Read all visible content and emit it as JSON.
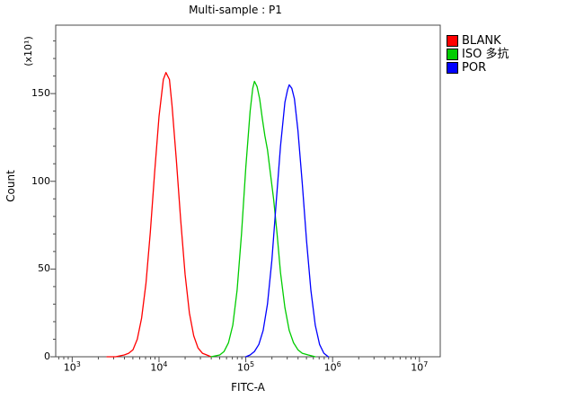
{
  "title": "Multi-sample : P1",
  "axes": {
    "x": {
      "label": "FITC-A",
      "scale": "log10",
      "tick_labels": [
        "10³",
        "10⁴",
        "10⁵",
        "10⁶",
        "10⁷"
      ],
      "tick_exponents": [
        3,
        4,
        5,
        6,
        7
      ],
      "range_log10": [
        2.81,
        7.24
      ]
    },
    "y": {
      "label": "Count",
      "unit_label": "(x10¹)",
      "major_ticks": [
        0,
        50,
        100,
        150
      ],
      "minor_step": 10,
      "range": [
        0,
        189
      ]
    }
  },
  "legend": {
    "items": [
      {
        "label": "BLANK",
        "color": "#ff0000"
      },
      {
        "label": "ISO 多抗",
        "color": "#00cc00"
      },
      {
        "label": "POR",
        "color": "#0000ff"
      }
    ]
  },
  "chart_data": {
    "type": "line",
    "title": "Multi-sample : P1",
    "xlabel": "FITC-A",
    "ylabel": "Count (x10¹)",
    "x_scale": "log10",
    "xlim_log10": [
      2.81,
      7.24
    ],
    "ylim": [
      0,
      189
    ],
    "grid": false,
    "legend_position": "top-right-outside",
    "series": [
      {
        "name": "BLANK",
        "color": "#ff0000",
        "peak": {
          "x": 12000,
          "count": 162
        },
        "points": [
          [
            3.4,
            0
          ],
          [
            3.5,
            0
          ],
          [
            3.6,
            1
          ],
          [
            3.65,
            2
          ],
          [
            3.7,
            4
          ],
          [
            3.75,
            10
          ],
          [
            3.8,
            22
          ],
          [
            3.85,
            42
          ],
          [
            3.9,
            71
          ],
          [
            3.95,
            105
          ],
          [
            4.0,
            137
          ],
          [
            4.05,
            158
          ],
          [
            4.08,
            162
          ],
          [
            4.12,
            158
          ],
          [
            4.15,
            143
          ],
          [
            4.2,
            112
          ],
          [
            4.25,
            78
          ],
          [
            4.3,
            47
          ],
          [
            4.35,
            25
          ],
          [
            4.4,
            12
          ],
          [
            4.45,
            5
          ],
          [
            4.5,
            2
          ],
          [
            4.55,
            1
          ],
          [
            4.6,
            0
          ]
        ]
      },
      {
        "name": "ISO 多抗",
        "color": "#00cc00",
        "peak": {
          "x": 126000,
          "count": 157
        },
        "points": [
          [
            4.6,
            0
          ],
          [
            4.7,
            1
          ],
          [
            4.75,
            3
          ],
          [
            4.8,
            8
          ],
          [
            4.85,
            18
          ],
          [
            4.9,
            38
          ],
          [
            4.95,
            70
          ],
          [
            5.0,
            108
          ],
          [
            5.05,
            140
          ],
          [
            5.08,
            153
          ],
          [
            5.1,
            157
          ],
          [
            5.13,
            154
          ],
          [
            5.16,
            147
          ],
          [
            5.19,
            136
          ],
          [
            5.22,
            126
          ],
          [
            5.25,
            118
          ],
          [
            5.28,
            106
          ],
          [
            5.32,
            90
          ],
          [
            5.36,
            70
          ],
          [
            5.4,
            48
          ],
          [
            5.45,
            28
          ],
          [
            5.5,
            15
          ],
          [
            5.55,
            8
          ],
          [
            5.6,
            4
          ],
          [
            5.65,
            2
          ],
          [
            5.72,
            1
          ],
          [
            5.8,
            0
          ]
        ]
      },
      {
        "name": "POR",
        "color": "#0000ff",
        "peak": {
          "x": 316000,
          "count": 155
        },
        "points": [
          [
            5.0,
            0
          ],
          [
            5.05,
            1
          ],
          [
            5.1,
            3
          ],
          [
            5.15,
            7
          ],
          [
            5.2,
            15
          ],
          [
            5.25,
            30
          ],
          [
            5.3,
            55
          ],
          [
            5.35,
            88
          ],
          [
            5.4,
            120
          ],
          [
            5.45,
            145
          ],
          [
            5.48,
            152
          ],
          [
            5.5,
            155
          ],
          [
            5.53,
            153
          ],
          [
            5.56,
            147
          ],
          [
            5.6,
            129
          ],
          [
            5.65,
            99
          ],
          [
            5.7,
            66
          ],
          [
            5.75,
            38
          ],
          [
            5.8,
            18
          ],
          [
            5.85,
            7
          ],
          [
            5.9,
            2
          ],
          [
            5.95,
            0
          ]
        ]
      }
    ]
  }
}
